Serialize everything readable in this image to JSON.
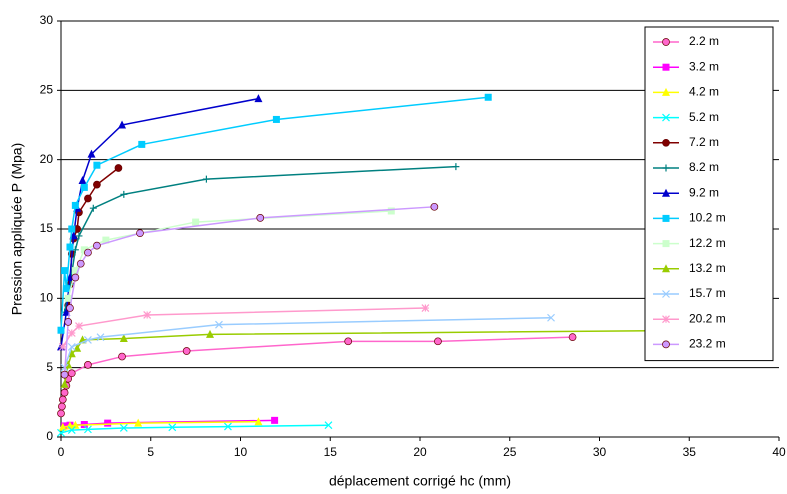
{
  "chart_data": {
    "type": "scatter_line",
    "x_label": "déplacement corrigé hc (mm)",
    "y_label": "Pression appliquée P (Mpa)",
    "xlim": [
      0,
      40
    ],
    "xticks": [
      0,
      5,
      10,
      15,
      20,
      25,
      30,
      35,
      40
    ],
    "ylim": [
      0,
      30
    ],
    "yticks": [
      0,
      5,
      10,
      15,
      20,
      25,
      30
    ],
    "grid": "horizontal",
    "legend": "right",
    "series": [
      {
        "name": "2.2 m",
        "color": "#ff66cc",
        "marker": "circle",
        "x": [
          0,
          0.05,
          0.1,
          0.2,
          0.3,
          0.4,
          0.6,
          1.5,
          3.4,
          7,
          16,
          21,
          28.5
        ],
        "values": [
          1.7,
          2.2,
          2.7,
          3.2,
          3.7,
          4.2,
          4.6,
          5.2,
          5.8,
          6.2,
          6.9,
          6.9,
          7.2
        ]
      },
      {
        "name": "3.2 m",
        "color": "#ff00ff",
        "marker": "square",
        "x": [
          0.2,
          0.5,
          1.3,
          2.6,
          11.9
        ],
        "values": [
          0.8,
          0.85,
          0.9,
          1.0,
          1.2
        ]
      },
      {
        "name": "4.2 m",
        "color": "#ffff00",
        "marker": "triangle",
        "x": [
          0.1,
          0.5,
          0.8,
          4.3,
          11
        ],
        "values": [
          0.7,
          0.8,
          0.85,
          1.0,
          1.1
        ]
      },
      {
        "name": "5.2 m",
        "color": "#00ffff",
        "marker": "x",
        "x": [
          0,
          0.6,
          1.5,
          3.5,
          6.2,
          9.3,
          14.9
        ],
        "values": [
          0.3,
          0.5,
          0.55,
          0.65,
          0.7,
          0.75,
          0.85
        ]
      },
      {
        "name": "7.2 m",
        "color": "#800000",
        "marker": "circle",
        "x": [
          0.4,
          0.5,
          0.6,
          0.7,
          0.9,
          1.0,
          1.5,
          2.0,
          3.2
        ],
        "values": [
          9.5,
          11,
          13.2,
          14.3,
          15,
          16.2,
          17.2,
          18.2,
          19.4
        ]
      },
      {
        "name": "8.2 m",
        "color": "#008080",
        "marker": "plus",
        "x": [
          0.2,
          0.5,
          0.8,
          1,
          1.8,
          3.5,
          8.1,
          22
        ],
        "values": [
          9,
          11,
          13.5,
          14.5,
          16.5,
          17.5,
          18.6,
          19.5
        ]
      },
      {
        "name": "9.2 m",
        "color": "#0000cc",
        "marker": "triangle",
        "x": [
          0,
          0.3,
          0.5,
          0.7,
          0.9,
          1.2,
          1.7,
          3.4,
          11
        ],
        "values": [
          6.5,
          9,
          11.5,
          14.5,
          16.5,
          18.5,
          20.4,
          22.5,
          24.4
        ]
      },
      {
        "name": "10.2 m",
        "color": "#00ccff",
        "marker": "square",
        "x": [
          0,
          0.2,
          0.3,
          0.5,
          0.6,
          0.8,
          1.3,
          2,
          4.5,
          12,
          23.8
        ],
        "values": [
          7.7,
          12,
          10.7,
          13.7,
          15,
          16.7,
          18,
          19.6,
          21.1,
          22.9,
          24.5
        ]
      },
      {
        "name": "12.2 m",
        "color": "#ccffcc",
        "marker": "square",
        "x": [
          0.4,
          0.8,
          1.3,
          2.5,
          7.5,
          18.4
        ],
        "values": [
          10,
          12,
          13.5,
          14.2,
          15.5,
          16.3
        ]
      },
      {
        "name": "13.2 m",
        "color": "#99cc00",
        "marker": "triangle",
        "x": [
          0.2,
          0.4,
          0.6,
          0.9,
          1.2,
          3.5,
          8.3,
          36.3
        ],
        "values": [
          3.8,
          5.2,
          6,
          6.4,
          7,
          7.1,
          7.4,
          7.7
        ]
      },
      {
        "name": "15.7 m",
        "color": "#99ccff",
        "marker": "x",
        "x": [
          0.2,
          0.6,
          1.5,
          2.2,
          8.8,
          27.3
        ],
        "values": [
          5,
          6.5,
          7,
          7.2,
          8.1,
          8.6
        ]
      },
      {
        "name": "20.2 m",
        "color": "#ff99cc",
        "marker": "star",
        "x": [
          0.1,
          0.6,
          1.0,
          4.8,
          20.3
        ],
        "values": [
          6.5,
          7.5,
          8,
          8.8,
          9.3
        ]
      },
      {
        "name": "23.2 m",
        "color": "#cc99ff",
        "marker": "circle",
        "x": [
          0.2,
          0.4,
          0.5,
          0.8,
          1.1,
          1.5,
          2,
          4.4,
          11.1,
          20.8
        ],
        "values": [
          4.5,
          8.3,
          9.3,
          11.5,
          12.5,
          13.3,
          13.8,
          14.7,
          15.8,
          16.6
        ]
      }
    ]
  }
}
